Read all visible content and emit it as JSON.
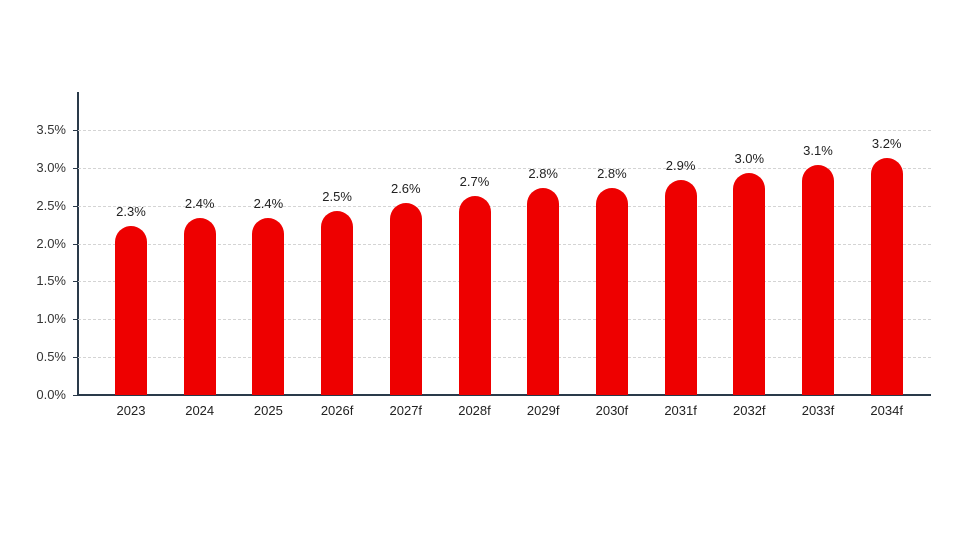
{
  "chart_data": {
    "type": "bar",
    "title": "",
    "xlabel": "",
    "ylabel": "",
    "categories": [
      "2023",
      "2024",
      "2025",
      "2026f",
      "2027f",
      "2028f",
      "2029f",
      "2030f",
      "2031f",
      "2032f",
      "2033f",
      "2034f"
    ],
    "values": [
      2.3,
      2.4,
      2.4,
      2.5,
      2.6,
      2.7,
      2.8,
      2.8,
      2.9,
      3.0,
      3.1,
      3.2
    ],
    "value_labels": [
      "2.3%",
      "2.4%",
      "2.4%",
      "2.5%",
      "2.6%",
      "2.7%",
      "2.8%",
      "2.8%",
      "2.9%",
      "3.0%",
      "3.1%",
      "3.2%"
    ],
    "ylim": [
      0,
      3.5
    ],
    "yticks": [
      0.0,
      0.5,
      1.0,
      1.5,
      2.0,
      2.5,
      3.0,
      3.5
    ],
    "ytick_labels": [
      "0.0%",
      "0.5%",
      "1.0%",
      "1.5%",
      "2.0%",
      "2.5%",
      "3.0%",
      "3.5%"
    ],
    "grid": true,
    "legend": null,
    "bar_color": "#ee0000"
  }
}
